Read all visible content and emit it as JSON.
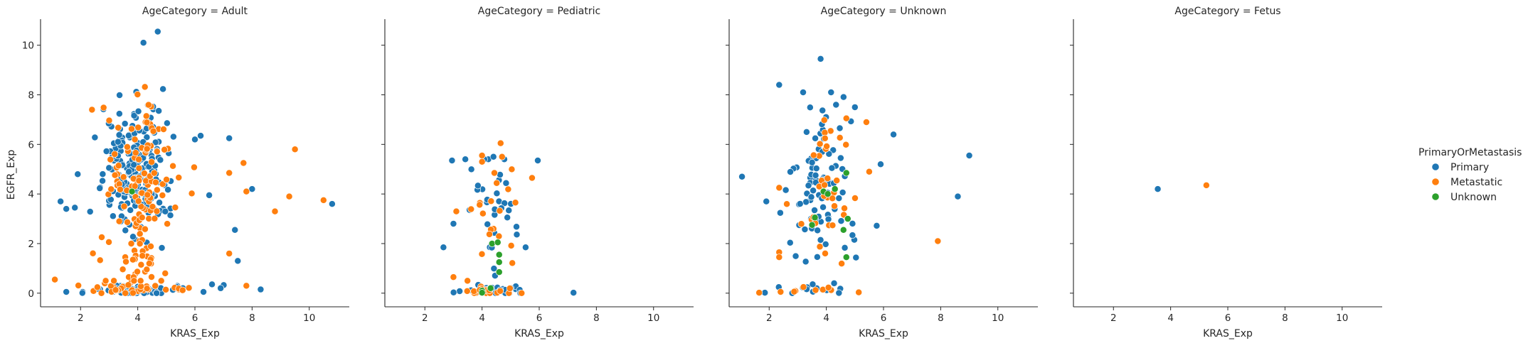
{
  "chart_data": {
    "type": "scatter",
    "facet_variable": "AgeCategory",
    "hue_variable": "PrimaryOrMetastasis",
    "xlabel": "KRAS_Exp",
    "ylabel": "EGFR_Exp",
    "xlim": [
      0.6,
      11.4
    ],
    "ylim": [
      -0.55,
      11.05
    ],
    "xticks": [
      2,
      4,
      6,
      8,
      10
    ],
    "yticks": [
      0,
      2,
      4,
      6,
      8,
      10
    ],
    "grid": false,
    "legend_placement": "right",
    "legend": {
      "title": "PrimaryOrMetastasis",
      "entries": [
        {
          "label": "Primary",
          "color": "#1f77b4"
        },
        {
          "label": "Metastatic",
          "color": "#ff7f0e"
        },
        {
          "label": "Unknown",
          "color": "#2ca02c"
        }
      ]
    },
    "panels": [
      {
        "title": "AgeCategory = Adult",
        "seed": 11,
        "clusters": [
          {
            "series": "Primary",
            "n": 210,
            "cx": 3.9,
            "sx": 0.55,
            "cy": 4.9,
            "sy": 1.15,
            "ymin": 1.0,
            "ymax": 10.2
          },
          {
            "series": "Primary",
            "n": 60,
            "cx": 3.9,
            "sx": 0.9,
            "cy": 0.12,
            "sy": 0.1,
            "ymin": 0.0,
            "ymax": 0.45
          },
          {
            "series": "Metastatic",
            "n": 110,
            "cx": 4.1,
            "sx": 0.6,
            "cy": 4.5,
            "sy": 1.5,
            "ymin": 0.8,
            "ymax": 9.3
          },
          {
            "series": "Metastatic",
            "n": 35,
            "cx": 4.2,
            "sx": 0.9,
            "cy": 0.15,
            "sy": 0.12,
            "ymin": 0.0,
            "ymax": 0.5
          },
          {
            "series": "Metastatic",
            "n": 30,
            "cx": 4.0,
            "sx": 0.6,
            "cy": 1.2,
            "sy": 0.5,
            "ymin": 0.5,
            "ymax": 2.0
          }
        ],
        "points": [
          {
            "series": "Primary",
            "x": 4.7,
            "y": 10.55
          },
          {
            "series": "Primary",
            "x": 4.2,
            "y": 10.1
          },
          {
            "series": "Primary",
            "x": 1.3,
            "y": 3.7
          },
          {
            "series": "Primary",
            "x": 1.5,
            "y": 3.4
          },
          {
            "series": "Primary",
            "x": 1.8,
            "y": 3.45
          },
          {
            "series": "Primary",
            "x": 1.9,
            "y": 4.8
          },
          {
            "series": "Primary",
            "x": 6.2,
            "y": 6.35
          },
          {
            "series": "Primary",
            "x": 6.0,
            "y": 6.2
          },
          {
            "series": "Primary",
            "x": 6.5,
            "y": 3.95
          },
          {
            "series": "Primary",
            "x": 7.2,
            "y": 6.25
          },
          {
            "series": "Primary",
            "x": 7.4,
            "y": 2.55
          },
          {
            "series": "Primary",
            "x": 7.5,
            "y": 1.3
          },
          {
            "series": "Primary",
            "x": 8.0,
            "y": 4.2
          },
          {
            "series": "Primary",
            "x": 8.3,
            "y": 0.15
          },
          {
            "series": "Primary",
            "x": 6.9,
            "y": 0.2
          },
          {
            "series": "Primary",
            "x": 6.3,
            "y": 0.05
          },
          {
            "series": "Primary",
            "x": 10.8,
            "y": 3.6
          },
          {
            "series": "Primary",
            "x": 1.5,
            "y": 0.05
          },
          {
            "series": "Metastatic",
            "x": 1.1,
            "y": 0.55
          },
          {
            "series": "Metastatic",
            "x": 2.4,
            "y": 7.4
          },
          {
            "series": "Metastatic",
            "x": 7.2,
            "y": 4.85
          },
          {
            "series": "Metastatic",
            "x": 7.2,
            "y": 1.6
          },
          {
            "series": "Metastatic",
            "x": 7.7,
            "y": 5.25
          },
          {
            "series": "Metastatic",
            "x": 7.8,
            "y": 4.1
          },
          {
            "series": "Metastatic",
            "x": 7.8,
            "y": 0.3
          },
          {
            "series": "Metastatic",
            "x": 8.8,
            "y": 3.3
          },
          {
            "series": "Metastatic",
            "x": 9.3,
            "y": 3.9
          },
          {
            "series": "Metastatic",
            "x": 9.5,
            "y": 5.8
          },
          {
            "series": "Metastatic",
            "x": 10.5,
            "y": 3.75
          },
          {
            "series": "Unknown",
            "x": 3.8,
            "y": 4.1
          }
        ]
      },
      {
        "title": "AgeCategory = Pediatric",
        "seed": 23,
        "clusters": [
          {
            "series": "Primary",
            "n": 32,
            "cx": 4.4,
            "sx": 0.55,
            "cy": 3.1,
            "sy": 1.5,
            "ymin": 0.6,
            "ymax": 5.4
          },
          {
            "series": "Primary",
            "n": 32,
            "cx": 4.4,
            "sx": 0.65,
            "cy": 0.12,
            "sy": 0.1,
            "ymin": 0.0,
            "ymax": 0.4
          },
          {
            "series": "Metastatic",
            "n": 20,
            "cx": 4.5,
            "sx": 0.45,
            "cy": 2.8,
            "sy": 1.5,
            "ymin": 0.5,
            "ymax": 5.5
          },
          {
            "series": "Metastatic",
            "n": 18,
            "cx": 4.4,
            "sx": 0.55,
            "cy": 0.15,
            "sy": 0.12,
            "ymin": 0.0,
            "ymax": 0.45
          }
        ],
        "points": [
          {
            "series": "Primary",
            "x": 2.65,
            "y": 1.85
          },
          {
            "series": "Primary",
            "x": 2.95,
            "y": 5.35
          },
          {
            "series": "Primary",
            "x": 3.0,
            "y": 2.8
          },
          {
            "series": "Primary",
            "x": 5.95,
            "y": 5.35
          },
          {
            "series": "Primary",
            "x": 7.2,
            "y": 0.02
          },
          {
            "series": "Primary",
            "x": 4.4,
            "y": 5.5
          },
          {
            "series": "Metastatic",
            "x": 4.65,
            "y": 6.05
          },
          {
            "series": "Metastatic",
            "x": 4.0,
            "y": 5.55
          },
          {
            "series": "Metastatic",
            "x": 4.0,
            "y": 5.3
          },
          {
            "series": "Metastatic",
            "x": 5.75,
            "y": 4.65
          },
          {
            "series": "Metastatic",
            "x": 3.1,
            "y": 3.3
          },
          {
            "series": "Metastatic",
            "x": 3.0,
            "y": 0.65
          },
          {
            "series": "Unknown",
            "x": 4.35,
            "y": 2.0
          },
          {
            "series": "Unknown",
            "x": 4.55,
            "y": 2.05
          },
          {
            "series": "Unknown",
            "x": 4.6,
            "y": 1.55
          },
          {
            "series": "Unknown",
            "x": 4.6,
            "y": 1.25
          },
          {
            "series": "Unknown",
            "x": 4.6,
            "y": 0.85
          },
          {
            "series": "Unknown",
            "x": 4.3,
            "y": 0.2
          },
          {
            "series": "Unknown",
            "x": 4.0,
            "y": 0.1
          },
          {
            "series": "Unknown",
            "x": 4.0,
            "y": 0.02
          }
        ]
      },
      {
        "title": "AgeCategory = Unknown",
        "seed": 37,
        "clusters": [
          {
            "series": "Primary",
            "n": 90,
            "cx": 3.9,
            "sx": 0.6,
            "cy": 4.6,
            "sy": 1.6,
            "ymin": 0.4,
            "ymax": 8.1
          },
          {
            "series": "Primary",
            "n": 12,
            "cx": 3.6,
            "sx": 0.75,
            "cy": 0.15,
            "sy": 0.12,
            "ymin": 0.0,
            "ymax": 0.5
          },
          {
            "series": "Metastatic",
            "n": 35,
            "cx": 4.0,
            "sx": 0.5,
            "cy": 4.6,
            "sy": 1.5,
            "ymin": 0.8,
            "ymax": 7.5
          },
          {
            "series": "Metastatic",
            "n": 8,
            "cx": 3.5,
            "sx": 0.7,
            "cy": 0.1,
            "sy": 0.08,
            "ymin": 0.0,
            "ymax": 0.35
          }
        ],
        "points": [
          {
            "series": "Primary",
            "x": 3.8,
            "y": 9.45
          },
          {
            "series": "Primary",
            "x": 2.35,
            "y": 8.4
          },
          {
            "series": "Primary",
            "x": 1.05,
            "y": 4.7
          },
          {
            "series": "Primary",
            "x": 1.9,
            "y": 3.7
          },
          {
            "series": "Primary",
            "x": 1.85,
            "y": 0.02
          },
          {
            "series": "Primary",
            "x": 6.35,
            "y": 6.4
          },
          {
            "series": "Primary",
            "x": 5.9,
            "y": 5.2
          },
          {
            "series": "Primary",
            "x": 8.6,
            "y": 3.9
          },
          {
            "series": "Primary",
            "x": 9.0,
            "y": 5.55
          },
          {
            "series": "Primary",
            "x": 5.0,
            "y": 7.5
          },
          {
            "series": "Metastatic",
            "x": 1.65,
            "y": 0.02
          },
          {
            "series": "Metastatic",
            "x": 2.35,
            "y": 1.65
          },
          {
            "series": "Metastatic",
            "x": 2.35,
            "y": 1.45
          },
          {
            "series": "Metastatic",
            "x": 2.35,
            "y": 4.25
          },
          {
            "series": "Metastatic",
            "x": 2.4,
            "y": 0.05
          },
          {
            "series": "Metastatic",
            "x": 3.2,
            "y": 0.25
          },
          {
            "series": "Metastatic",
            "x": 5.5,
            "y": 4.9
          },
          {
            "series": "Metastatic",
            "x": 7.9,
            "y": 2.1
          },
          {
            "series": "Metastatic",
            "x": 4.7,
            "y": 7.05
          },
          {
            "series": "Unknown",
            "x": 3.9,
            "y": 4.1
          },
          {
            "series": "Unknown",
            "x": 4.05,
            "y": 4.0
          },
          {
            "series": "Unknown",
            "x": 4.3,
            "y": 4.2
          },
          {
            "series": "Unknown",
            "x": 4.7,
            "y": 4.85
          },
          {
            "series": "Unknown",
            "x": 3.6,
            "y": 3.05
          },
          {
            "series": "Unknown",
            "x": 4.75,
            "y": 3.0
          },
          {
            "series": "Unknown",
            "x": 3.5,
            "y": 2.75
          },
          {
            "series": "Unknown",
            "x": 4.6,
            "y": 2.55
          },
          {
            "series": "Unknown",
            "x": 4.7,
            "y": 1.45
          }
        ]
      },
      {
        "title": "AgeCategory = Fetus",
        "seed": 41,
        "clusters": [],
        "points": [
          {
            "series": "Primary",
            "x": 3.55,
            "y": 4.2
          },
          {
            "series": "Metastatic",
            "x": 5.25,
            "y": 4.35
          }
        ]
      }
    ]
  }
}
